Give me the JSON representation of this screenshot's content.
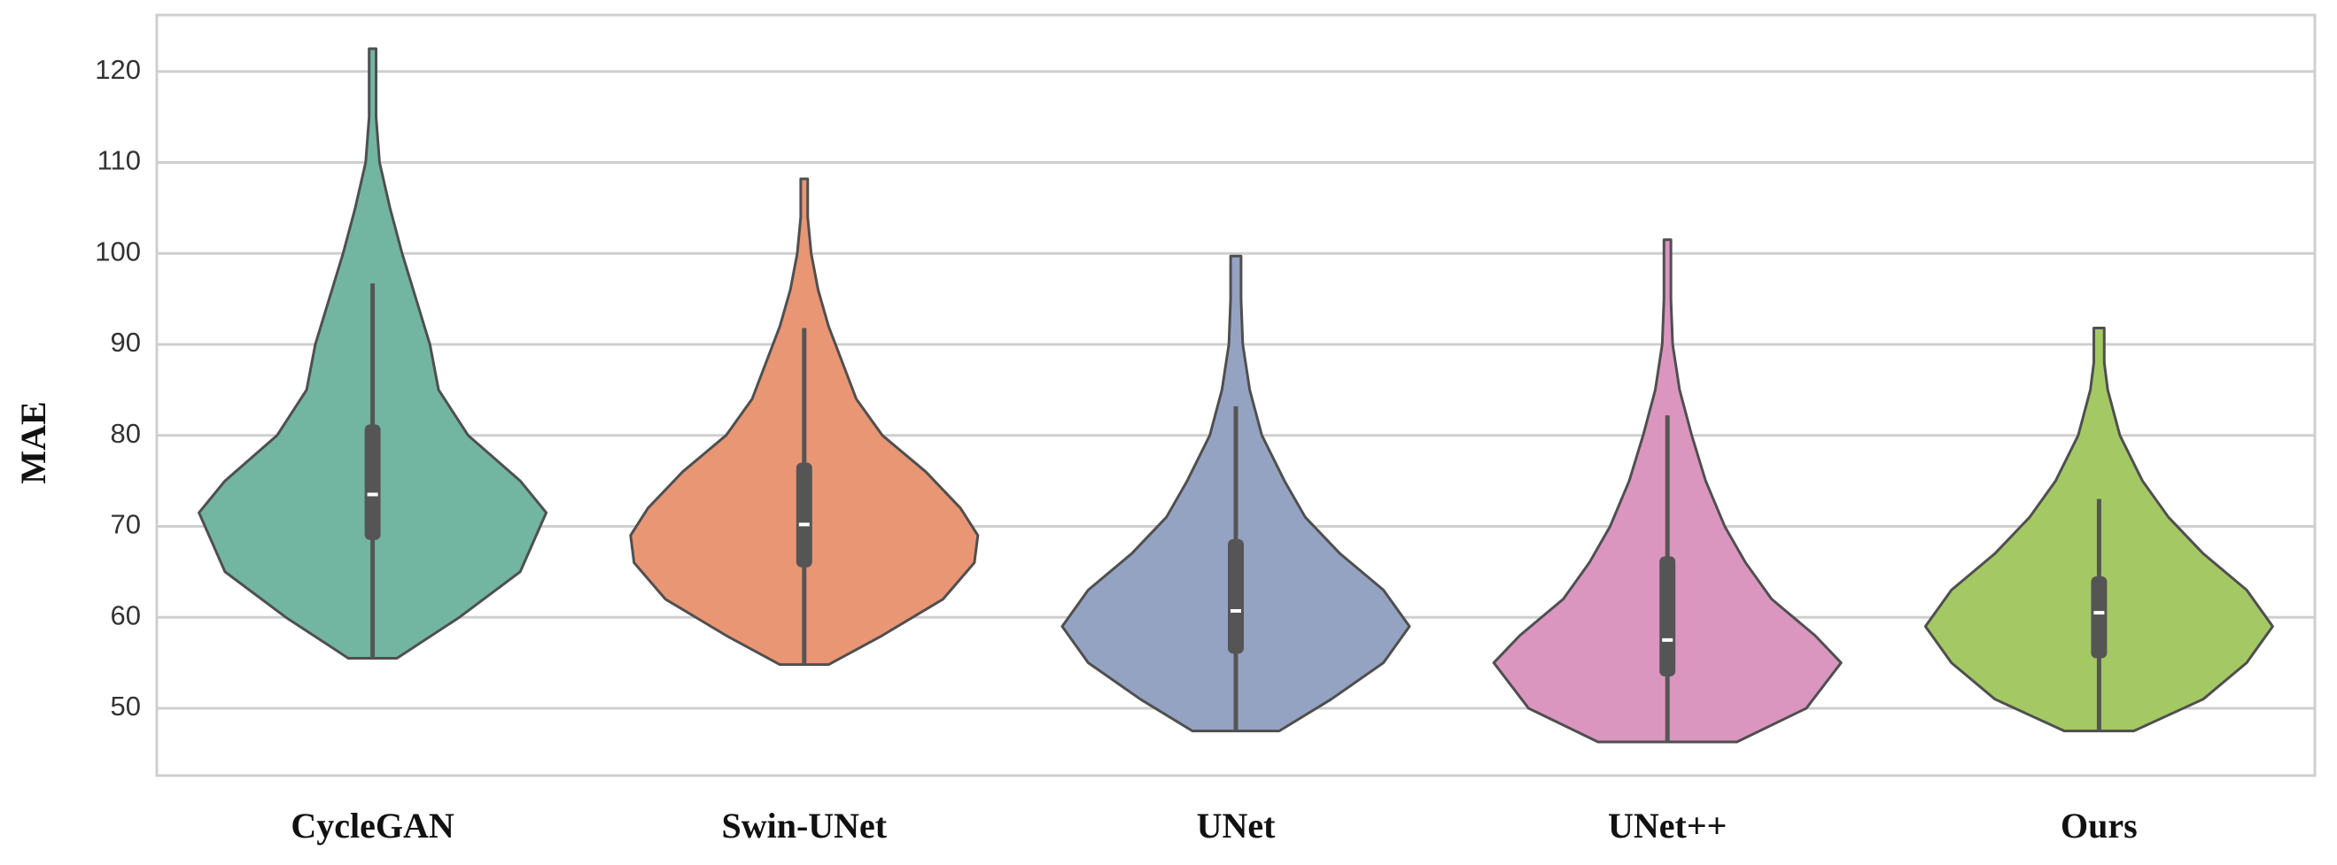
{
  "chart_data": {
    "type": "violin",
    "ylabel": "MAE",
    "categories": [
      "CycleGAN",
      "Swin-UNet",
      "UNet",
      "UNet++",
      "Ours"
    ],
    "ylim": [
      42.6,
      126.2
    ],
    "yticks": [
      50,
      60,
      70,
      80,
      90,
      100,
      110,
      120
    ],
    "grid": true,
    "violins": [
      {
        "color": "#72b6a1",
        "whisker_low": 55.5,
        "q1": 68.5,
        "median": 73.5,
        "q3": 81.2,
        "whisker_high": 96.7,
        "density_y": [
          55.5,
          60,
          65,
          71.5,
          75,
          80,
          85,
          90,
          95,
          100,
          105,
          110,
          115,
          120,
          122.5
        ],
        "density": [
          0.14,
          0.5,
          0.85,
          1.0,
          0.85,
          0.55,
          0.38,
          0.33,
          0.25,
          0.17,
          0.1,
          0.04,
          0.02,
          0.02,
          0.02
        ]
      },
      {
        "color": "#e99675",
        "whisker_low": 54.8,
        "q1": 65.5,
        "median": 70.2,
        "q3": 77,
        "whisker_high": 91.8,
        "density_y": [
          54.8,
          58,
          62,
          66,
          69,
          72,
          76,
          80,
          84,
          88,
          92,
          96,
          100,
          104,
          108.2
        ],
        "density": [
          0.14,
          0.45,
          0.8,
          0.98,
          1.0,
          0.9,
          0.7,
          0.45,
          0.3,
          0.22,
          0.14,
          0.08,
          0.04,
          0.02,
          0.02
        ]
      },
      {
        "color": "#95a3c3",
        "whisker_low": 47.5,
        "q1": 56,
        "median": 60.7,
        "q3": 68.6,
        "whisker_high": 83.2,
        "density_y": [
          47.5,
          51,
          55,
          59,
          63,
          67,
          71,
          75,
          80,
          85,
          90,
          95,
          99.7
        ],
        "density": [
          0.25,
          0.55,
          0.85,
          1.0,
          0.85,
          0.6,
          0.4,
          0.28,
          0.15,
          0.08,
          0.04,
          0.03,
          0.03
        ]
      },
      {
        "color": "#db96c0",
        "whisker_low": 46.3,
        "q1": 53.5,
        "median": 57.5,
        "q3": 66.7,
        "whisker_high": 82.2,
        "density_y": [
          46.3,
          50,
          55,
          58,
          62,
          66,
          70,
          75,
          80,
          85,
          90,
          95,
          101.5
        ],
        "density": [
          0.4,
          0.8,
          1.0,
          0.85,
          0.6,
          0.45,
          0.33,
          0.22,
          0.14,
          0.07,
          0.03,
          0.02,
          0.02
        ]
      },
      {
        "color": "#a4c964",
        "whisker_low": 47.5,
        "q1": 55.5,
        "median": 60.5,
        "q3": 64.5,
        "whisker_high": 73,
        "density_y": [
          47.5,
          51,
          55,
          59,
          63,
          67,
          71,
          75,
          80,
          85,
          88,
          91.8
        ],
        "density": [
          0.2,
          0.6,
          0.85,
          1.0,
          0.85,
          0.6,
          0.4,
          0.25,
          0.12,
          0.05,
          0.03,
          0.03
        ]
      }
    ]
  }
}
